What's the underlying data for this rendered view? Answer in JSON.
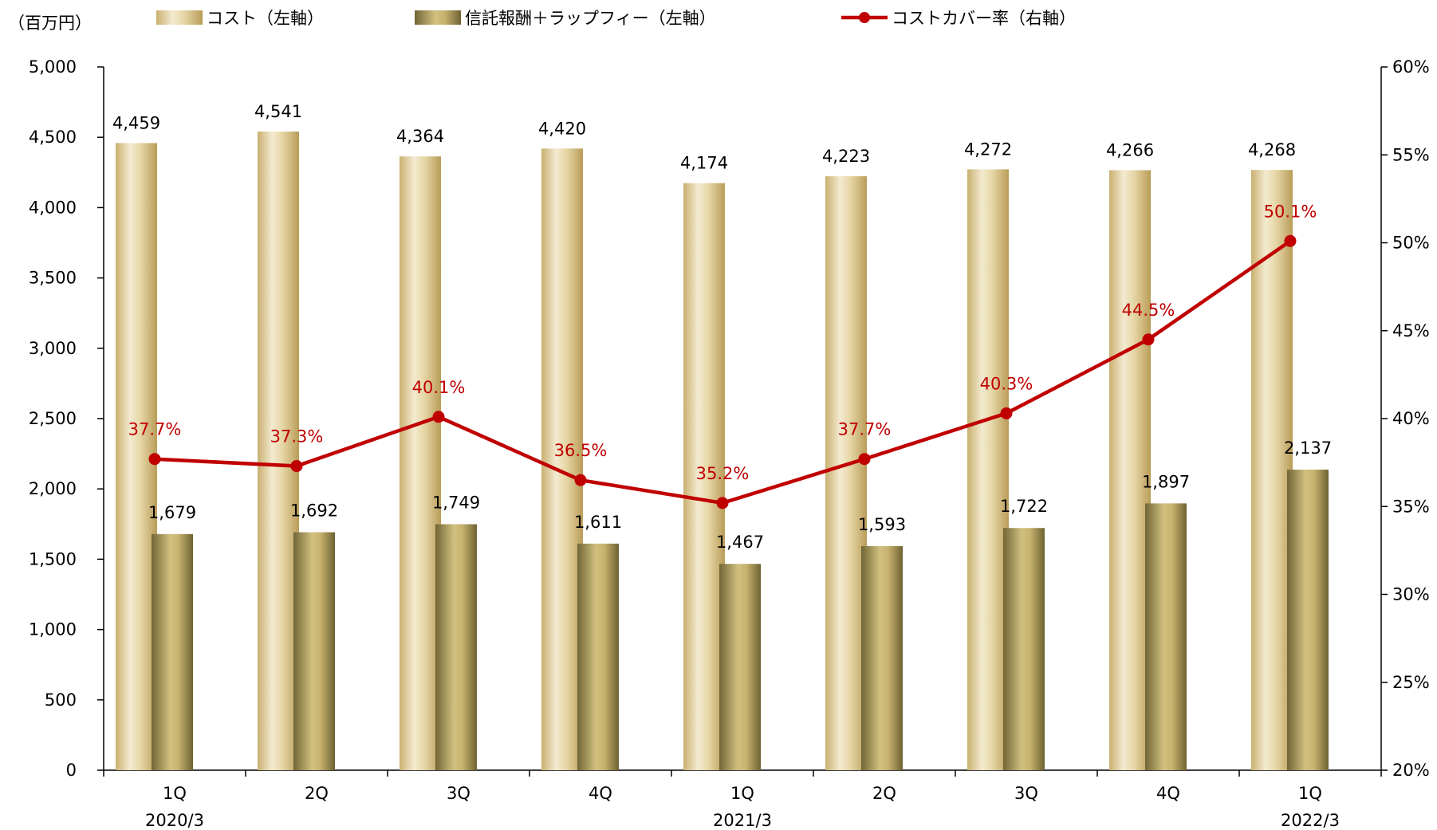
{
  "chart_data": {
    "type": "bar",
    "unit_label": "（百万円）",
    "categories": [
      "1Q",
      "2Q",
      "3Q",
      "4Q",
      "1Q",
      "2Q",
      "3Q",
      "4Q",
      "1Q"
    ],
    "fiscal_year_labels": [
      "2020/3",
      "",
      "",
      "",
      "2021/3",
      "",
      "",
      "",
      "2022/3"
    ],
    "series": [
      {
        "name": "コスト（左軸）",
        "type": "bar",
        "axis": "left",
        "values": [
          4459,
          4541,
          4364,
          4420,
          4174,
          4223,
          4272,
          4266,
          4268
        ],
        "labels": [
          "4,459",
          "4,541",
          "4,364",
          "4,420",
          "4,174",
          "4,223",
          "4,272",
          "4,266",
          "4,268"
        ],
        "color": "#d9c68e"
      },
      {
        "name": "信託報酬＋ラップフィー（左軸）",
        "type": "bar",
        "axis": "left",
        "values": [
          1679,
          1692,
          1749,
          1611,
          1467,
          1593,
          1722,
          1897,
          2137
        ],
        "labels": [
          "1,679",
          "1,692",
          "1,749",
          "1,611",
          "1,467",
          "1,593",
          "1,722",
          "1,897",
          "2,137"
        ],
        "color": "#a2925a"
      },
      {
        "name": "コストカバー率（右軸）",
        "type": "line",
        "axis": "right",
        "values": [
          37.7,
          37.3,
          40.1,
          36.5,
          35.2,
          37.7,
          40.3,
          44.5,
          50.1
        ],
        "labels": [
          "37.7%",
          "37.3%",
          "40.1%",
          "36.5%",
          "35.2%",
          "37.7%",
          "40.3%",
          "44.5%",
          "50.1%"
        ],
        "color": "#c00000"
      }
    ],
    "y_left": {
      "min": 0,
      "max": 5000,
      "tick_values": [
        0,
        500,
        1000,
        1500,
        2000,
        2500,
        3000,
        3500,
        4000,
        4500,
        5000
      ],
      "tick_labels": [
        "0",
        "500",
        "1,000",
        "1,500",
        "2,000",
        "2,500",
        "3,000",
        "3,500",
        "4,000",
        "4,500",
        "5,000"
      ]
    },
    "y_right": {
      "min": 20,
      "max": 60,
      "tick_values": [
        20,
        25,
        30,
        35,
        40,
        45,
        50,
        55,
        60
      ],
      "tick_labels": [
        "20%",
        "25%",
        "30%",
        "35%",
        "40%",
        "45%",
        "50%",
        "55%",
        "60%"
      ]
    },
    "grid": false,
    "legend_position": "top"
  }
}
